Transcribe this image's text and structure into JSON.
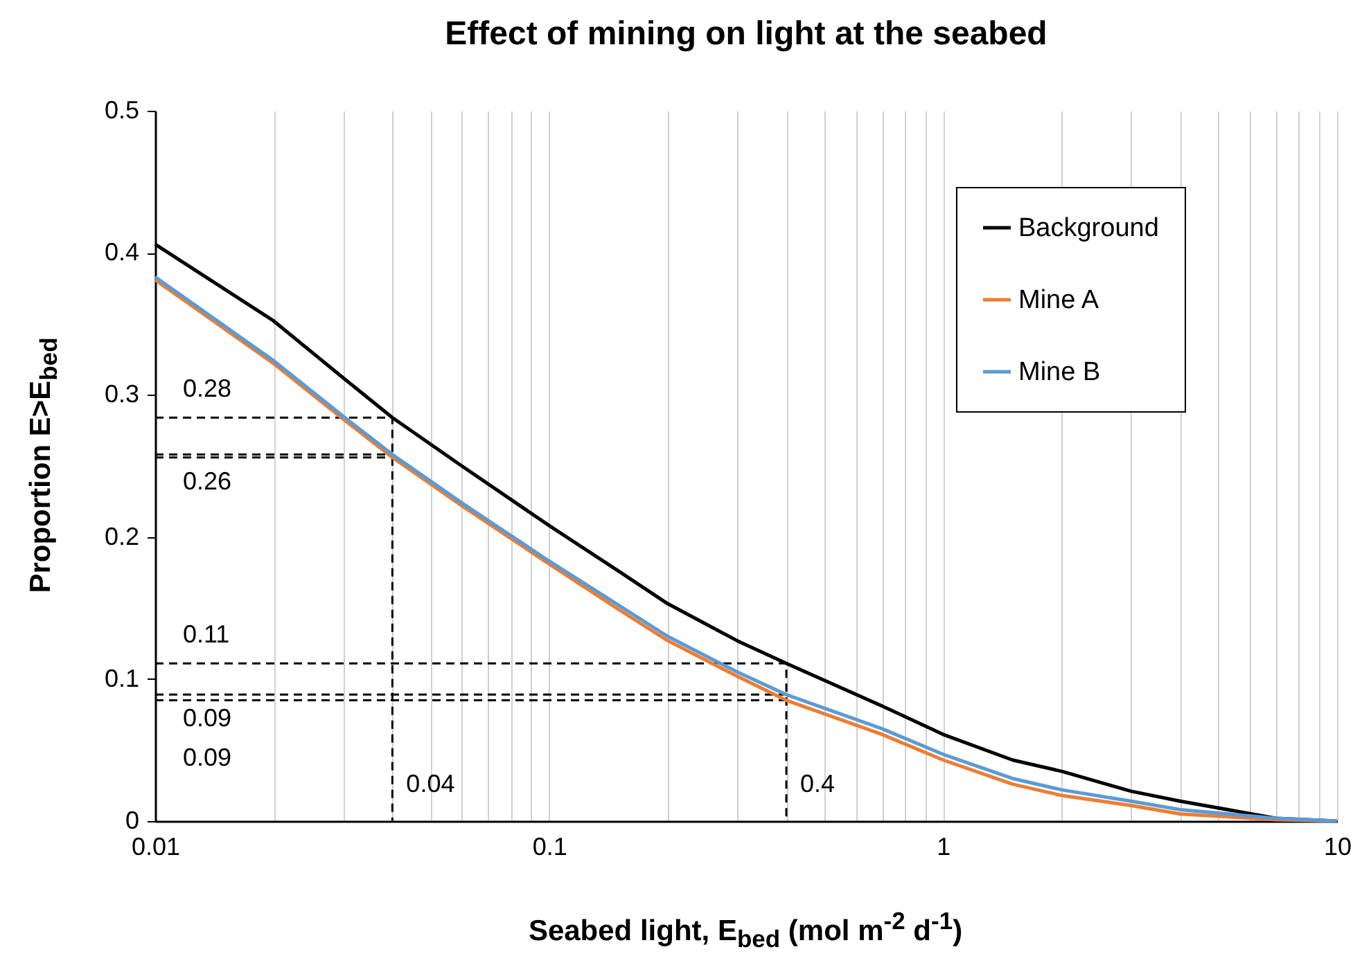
{
  "chart_data": {
    "type": "line",
    "title": "Effect of mining on light at the seabed",
    "xlabel": "Seabed light, E$_{bed}$ (mol m$^{-2}$ d$^{-1}$)",
    "ylabel": "Proportion E>E$_{bed}$",
    "log": "x",
    "grid": "x",
    "legend": "top right",
    "marker": "none",
    "xlim": [
      0.01,
      10
    ],
    "ylim": [
      0,
      0.5
    ],
    "xticks": [
      0.01,
      {
        "value": 0.02,
        "label": null
      },
      {
        "value": 0.03,
        "label": null
      },
      {
        "value": 0.04,
        "label": null
      },
      {
        "value": 0.05,
        "label": null
      },
      {
        "value": 0.06,
        "label": null
      },
      {
        "value": 0.07,
        "label": null
      },
      {
        "value": 0.08,
        "label": null
      },
      {
        "value": 0.09,
        "label": null
      },
      0.1,
      {
        "value": 0.2,
        "label": null
      },
      {
        "value": 0.3,
        "label": null
      },
      {
        "value": 0.4,
        "label": null
      },
      {
        "value": 0.5,
        "label": null
      },
      {
        "value": 0.6,
        "label": null
      },
      {
        "value": 0.7,
        "label": null
      },
      {
        "value": 0.8,
        "label": null
      },
      {
        "value": 0.9,
        "label": null
      },
      1,
      {
        "value": 2,
        "label": null
      },
      {
        "value": 3,
        "label": null
      },
      {
        "value": 4,
        "label": null
      },
      {
        "value": 5,
        "label": null
      },
      {
        "value": 6,
        "label": null
      },
      {
        "value": 7,
        "label": null
      },
      {
        "value": 8,
        "label": null
      },
      {
        "value": 9,
        "label": null
      },
      10
    ],
    "yticks": [
      0,
      0.1,
      0.2,
      0.3,
      0.4,
      0.5
    ],
    "x": [
      0.01,
      0.02,
      0.03,
      0.04,
      0.06,
      0.1,
      0.15,
      0.2,
      0.3,
      0.4,
      0.7,
      1,
      1.5,
      2,
      3,
      4,
      7,
      10
    ],
    "series": [
      {
        "name": "Background",
        "color": "#000000",
        "line_style": "solid",
        "values": [
          0.406,
          0.352,
          0.312,
          0.284,
          0.25,
          0.208,
          0.176,
          0.153,
          0.127,
          0.111,
          0.081,
          0.061,
          0.043,
          0.035,
          0.021,
          0.014,
          0.002,
          0
        ]
      },
      {
        "name": "Mine A",
        "color": "#ed7d31",
        "line_style": "solid",
        "values": [
          0.381,
          0.322,
          0.283,
          0.256,
          0.222,
          0.181,
          0.149,
          0.127,
          0.102,
          0.085,
          0.061,
          0.043,
          0.026,
          0.018,
          0.011,
          0.005,
          0.001,
          0
        ]
      },
      {
        "name": "Mine B",
        "color": "#5b9bd5",
        "line_style": "solid",
        "values": [
          0.383,
          0.324,
          0.285,
          0.258,
          0.224,
          0.183,
          0.152,
          0.13,
          0.105,
          0.089,
          0.065,
          0.047,
          0.03,
          0.022,
          0.014,
          0.008,
          0.002,
          0
        ]
      },
      {
        "color": "#000000",
        "line_style": "dashed",
        "x": [
          0.01,
          0.04,
          0.04
        ],
        "values": [
          0.284,
          0.284,
          0
        ]
      },
      {
        "color": "#000000",
        "line_style": "dashed",
        "x": [
          0.01,
          0.04
        ],
        "values": [
          0.258,
          0.258
        ]
      },
      {
        "color": "#000000",
        "line_style": "dashed",
        "x": [
          0.01,
          0.04
        ],
        "values": [
          0.256,
          0.256
        ]
      },
      {
        "color": "#000000",
        "line_style": "dashed",
        "x": [
          0.01,
          0.4,
          0.4
        ],
        "values": [
          0.111,
          0.111,
          0
        ]
      },
      {
        "color": "#000000",
        "line_style": "dashed",
        "x": [
          0.01,
          0.4
        ],
        "values": [
          0.089,
          0.089
        ]
      },
      {
        "color": "#000000",
        "line_style": "dashed",
        "x": [
          0.01,
          0.4
        ],
        "values": [
          0.085,
          0.085
        ]
      }
    ],
    "annotations": [
      {
        "text": "0.28",
        "x": 0.01,
        "y": 0.284
      },
      {
        "text": "0.26",
        "x": 0.01,
        "y": 0.256
      },
      {
        "text": "0.11",
        "x": 0.01,
        "y": 0.111
      },
      {
        "text": "0.09",
        "x": 0.01,
        "y": 0.089
      },
      {
        "text": "0.09",
        "x": 0.01,
        "y": 0.085
      },
      {
        "text": "0.04",
        "x": 0.04,
        "y": 0
      },
      {
        "text": "0.4",
        "x": 0.4,
        "y": 0
      }
    ]
  }
}
